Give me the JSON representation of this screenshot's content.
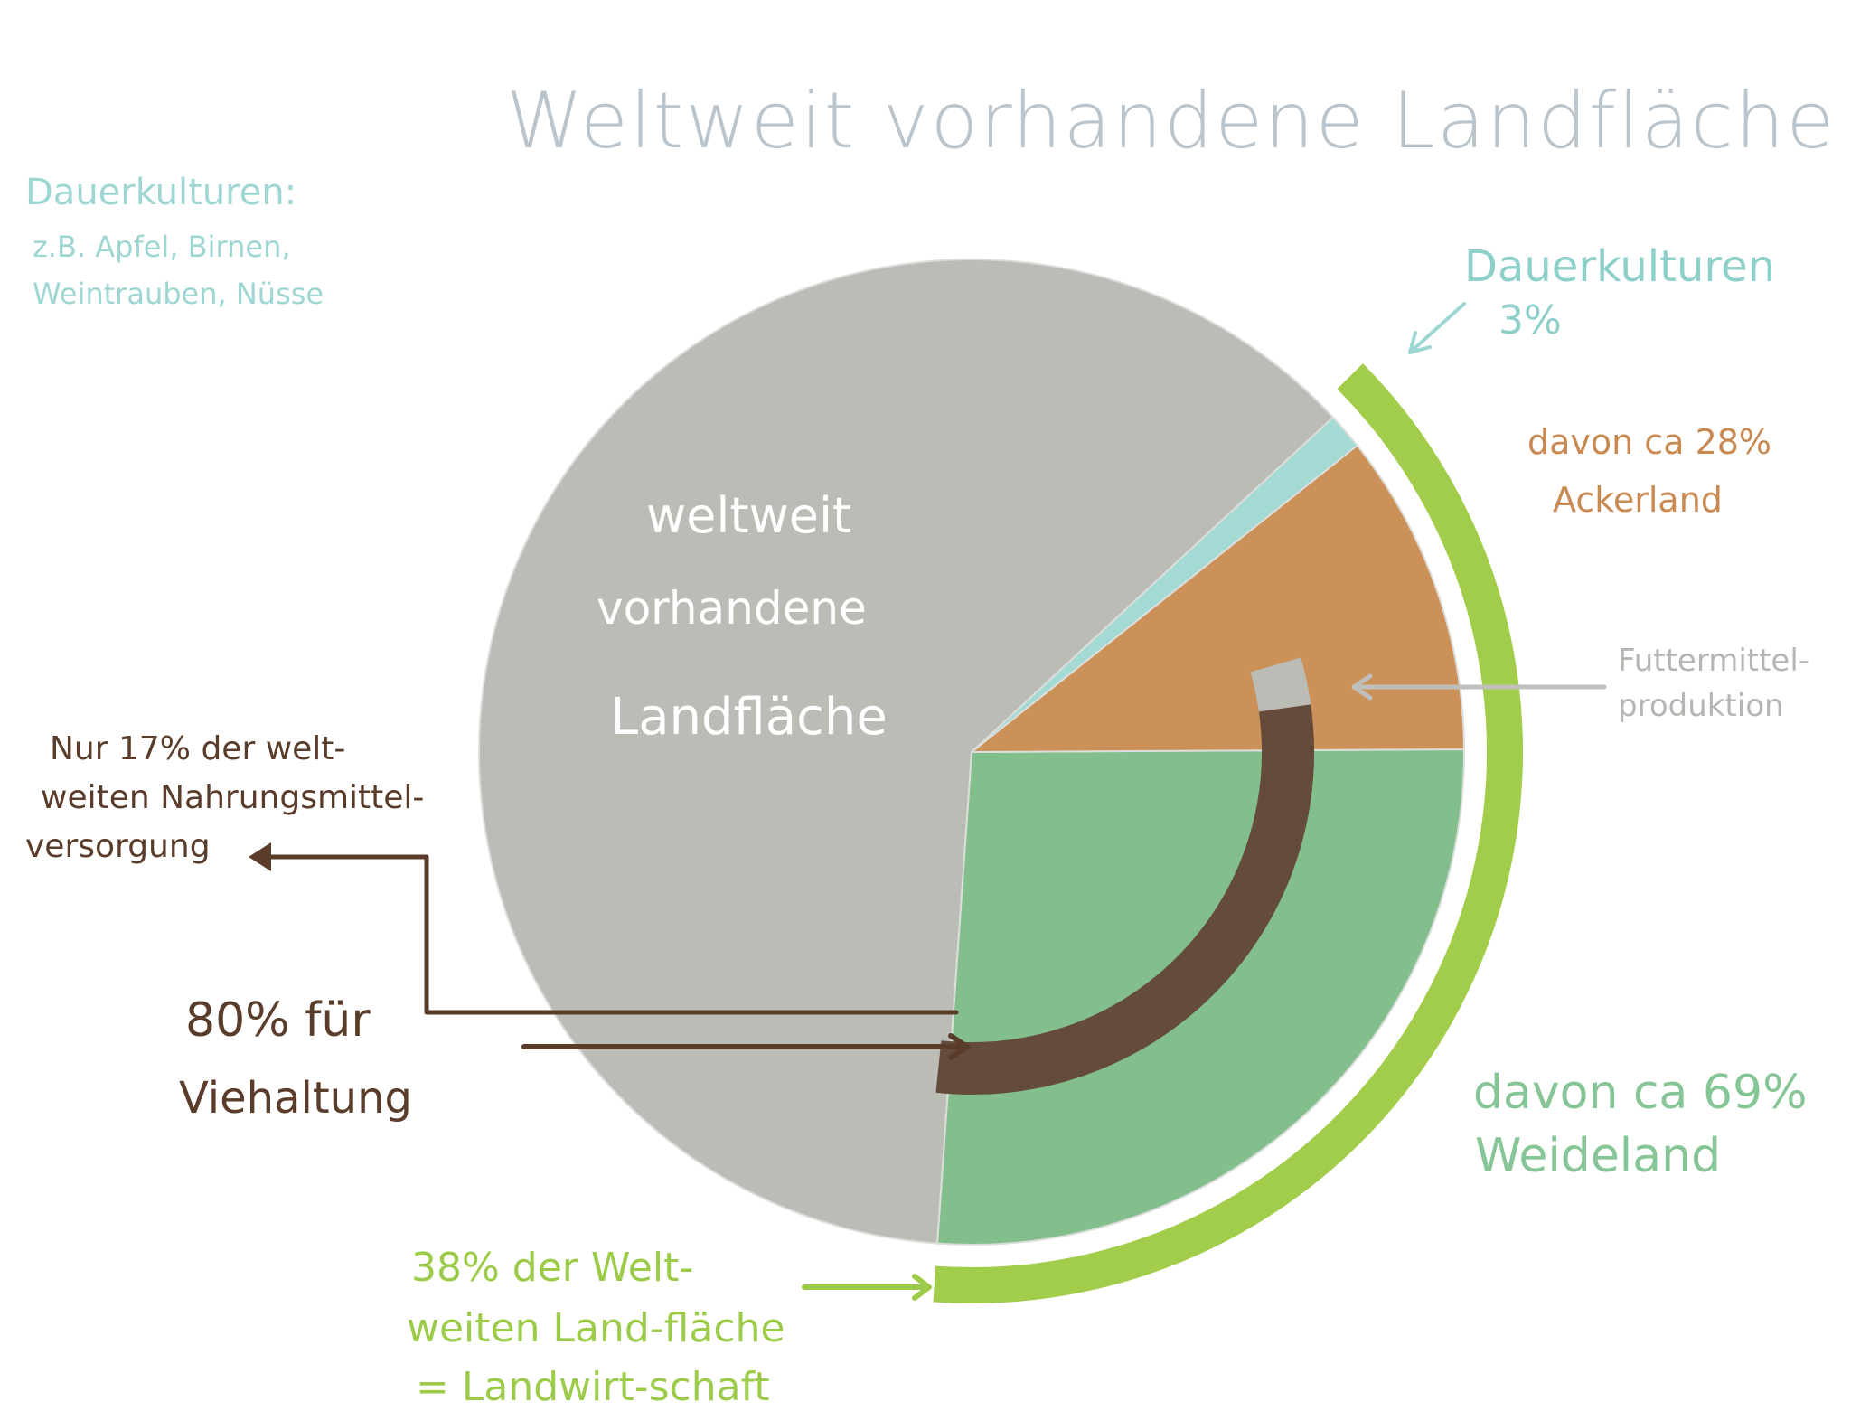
{
  "title": "Weltweit vorhandene Landfläche",
  "dauerkulturen_note": {
    "title": "Dauerkulturen:",
    "line1": "z.B. Apfel, Birnen,",
    "line2": "Weintrauben, Nüsse"
  },
  "labels": {
    "dauerkulturen": "Dauerkulturen",
    "dauerkulturen_pct": "3%",
    "ackerland_1": "davon ca 28%",
    "ackerland_2": "Ackerland",
    "futter_1": "Futtermittel-",
    "futter_2": "produktion",
    "center_1": "weltweit",
    "center_2": "vorhandene",
    "center_3": "Landfläche",
    "nur_1": "Nur 17% der welt-",
    "nur_2": "weiten Nahrungsmittel-",
    "nur_3": "versorgung",
    "vieh_1": "80% für",
    "vieh_2": "Viehaltung",
    "weide_1": "davon ca 69%",
    "weide_2": "Weideland",
    "lw_1": "38% der Welt-",
    "lw_2": "weiten Land-fläche",
    "lw_3": "= Landwirt-schaft"
  },
  "chart_data": {
    "type": "pie",
    "title": "Weltweit vorhandene Landfläche",
    "slices": [
      {
        "label": "Weideland",
        "value": 26.2,
        "color": "#82bf8c"
      },
      {
        "label": "Ackerland",
        "value": 10.6,
        "color": "#cc9159"
      },
      {
        "label": "Dauerkulturen",
        "value": 1.2,
        "color": "#a3dad4"
      },
      {
        "label": "weltweit vorhandene Landfläche",
        "value": 62.0,
        "color": "#bbbcb6"
      }
    ],
    "agriculture_share_percent": 38,
    "agriculture_breakdown_percent": {
      "Weideland": 69,
      "Ackerland": 28,
      "Dauerkulturen": 3
    },
    "livestock_share_percent": 80,
    "food_supply_share_percent": 17,
    "colors": {
      "agriculture_arc": "#a2cd4a",
      "livestock_arc": "#654b3b",
      "feed_arc": "#bbbcb6",
      "arrow_gray": "#bfc0bc",
      "arrow_brown": "#5a3c2a",
      "arrow_green": "#9ccb4a",
      "arrow_teal": "#9dd6d2"
    }
  }
}
